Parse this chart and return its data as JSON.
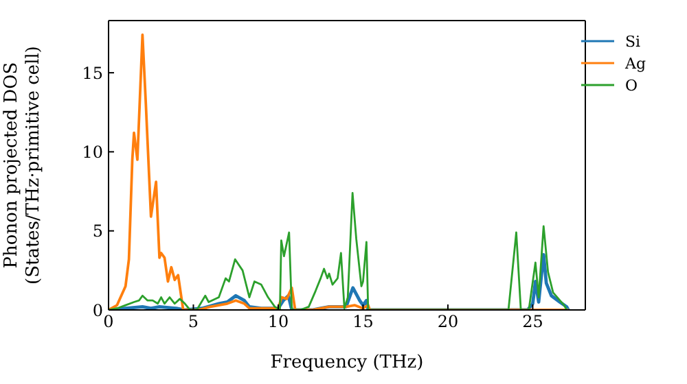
{
  "chart_data": {
    "type": "line",
    "xlabel": "Frequency (THz)",
    "ylabel": "Phonon projected DOS\n(States/THz·primitive cell)",
    "xlim": [
      0,
      28.1
    ],
    "ylim": [
      0,
      18.3
    ],
    "xticks": [
      0,
      5,
      10,
      15,
      20,
      25
    ],
    "yticks": [
      0,
      5,
      10,
      15
    ],
    "grid": false,
    "legend": "top right",
    "marker": "none",
    "line_style": "solid",
    "series": [
      {
        "name": "Si",
        "color": "#1f77b4",
        "x": [
          0,
          1,
          2,
          2.5,
          3,
          4,
          4.5,
          5.5,
          6.5,
          7,
          7.5,
          8,
          8.3,
          9,
          10,
          10.3,
          10.6,
          10.8,
          12,
          12.5,
          13,
          14,
          14.4,
          14.8,
          15,
          15.2,
          15.3,
          24.7,
          25,
          25.16,
          25.35,
          25.64,
          25.8,
          26.1,
          26.6,
          27,
          27.1
        ],
        "values": [
          0,
          0.1,
          0.2,
          0.1,
          0.2,
          0.1,
          0,
          0.1,
          0.4,
          0.5,
          0.9,
          0.6,
          0.2,
          0.1,
          0.1,
          0.6,
          0.9,
          0,
          0,
          0.1,
          0.2,
          0.2,
          1.4,
          0.6,
          0.3,
          0.6,
          0,
          0,
          0.4,
          1.8,
          0.5,
          3.5,
          1.7,
          0.9,
          0.5,
          0.2,
          0
        ]
      },
      {
        "name": "Ag",
        "color": "#ff7f0e",
        "x": [
          0,
          0.5,
          1,
          1.2,
          1.4,
          1.5,
          1.7,
          2,
          2.2,
          2.5,
          2.8,
          3,
          3.1,
          3.3,
          3.5,
          3.7,
          3.9,
          4.1,
          4.4,
          5.3,
          6,
          7,
          7.5,
          8,
          8.3,
          9,
          10,
          10.2,
          10.5,
          10.8,
          11,
          12,
          13,
          14,
          14.5,
          15,
          15.3,
          15.4,
          27.1
        ],
        "values": [
          0,
          0.3,
          1.5,
          3.2,
          9.5,
          11.2,
          9.5,
          17.4,
          13,
          5.9,
          8.1,
          3.3,
          3.6,
          3.3,
          1.8,
          2.7,
          1.9,
          2.2,
          0,
          0,
          0.2,
          0.4,
          0.6,
          0.4,
          0.1,
          0.1,
          0.1,
          0.8,
          0.7,
          1.4,
          0,
          0,
          0.2,
          0.2,
          0.3,
          0.1,
          0.3,
          0,
          0
        ]
      },
      {
        "name": "O",
        "color": "#2ca02c",
        "x": [
          0,
          0.5,
          1,
          1.5,
          1.8,
          2,
          2.3,
          2.6,
          2.9,
          3.1,
          3.3,
          3.6,
          3.9,
          4.2,
          4.5,
          4.8,
          5.2,
          5.7,
          5.9,
          6.5,
          6.9,
          7.1,
          7.46,
          7.9,
          8.3,
          8.6,
          9,
          9.4,
          9.8,
          10.1,
          10.18,
          10.34,
          10.64,
          10.8,
          11.3,
          11.8,
          12.2,
          12.5,
          12.7,
          12.9,
          13,
          13.2,
          13.5,
          13.7,
          13.9,
          14.1,
          14.38,
          14.6,
          14.9,
          15,
          15.2,
          15.3,
          23.57,
          24.03,
          24.3,
          24.77,
          25.16,
          25.35,
          25.64,
          25.9,
          26.2,
          26.85,
          27
        ],
        "values": [
          0,
          0.1,
          0.3,
          0.5,
          0.6,
          0.9,
          0.6,
          0.6,
          0.4,
          0.8,
          0.4,
          0.8,
          0.4,
          0.7,
          0.4,
          0,
          0,
          0.9,
          0.5,
          0.8,
          2,
          1.8,
          3.2,
          2.5,
          0.8,
          1.8,
          1.6,
          0.8,
          0.2,
          0,
          4.4,
          3.4,
          4.9,
          0,
          0,
          0.2,
          1.2,
          2,
          2.6,
          2,
          2.3,
          1.6,
          2,
          3.6,
          0.1,
          0.8,
          7.4,
          4.5,
          1.5,
          1.8,
          4.3,
          0,
          0,
          4.9,
          0,
          0,
          3,
          0.8,
          5.3,
          2.4,
          1.1,
          0.3,
          0
        ]
      }
    ]
  }
}
